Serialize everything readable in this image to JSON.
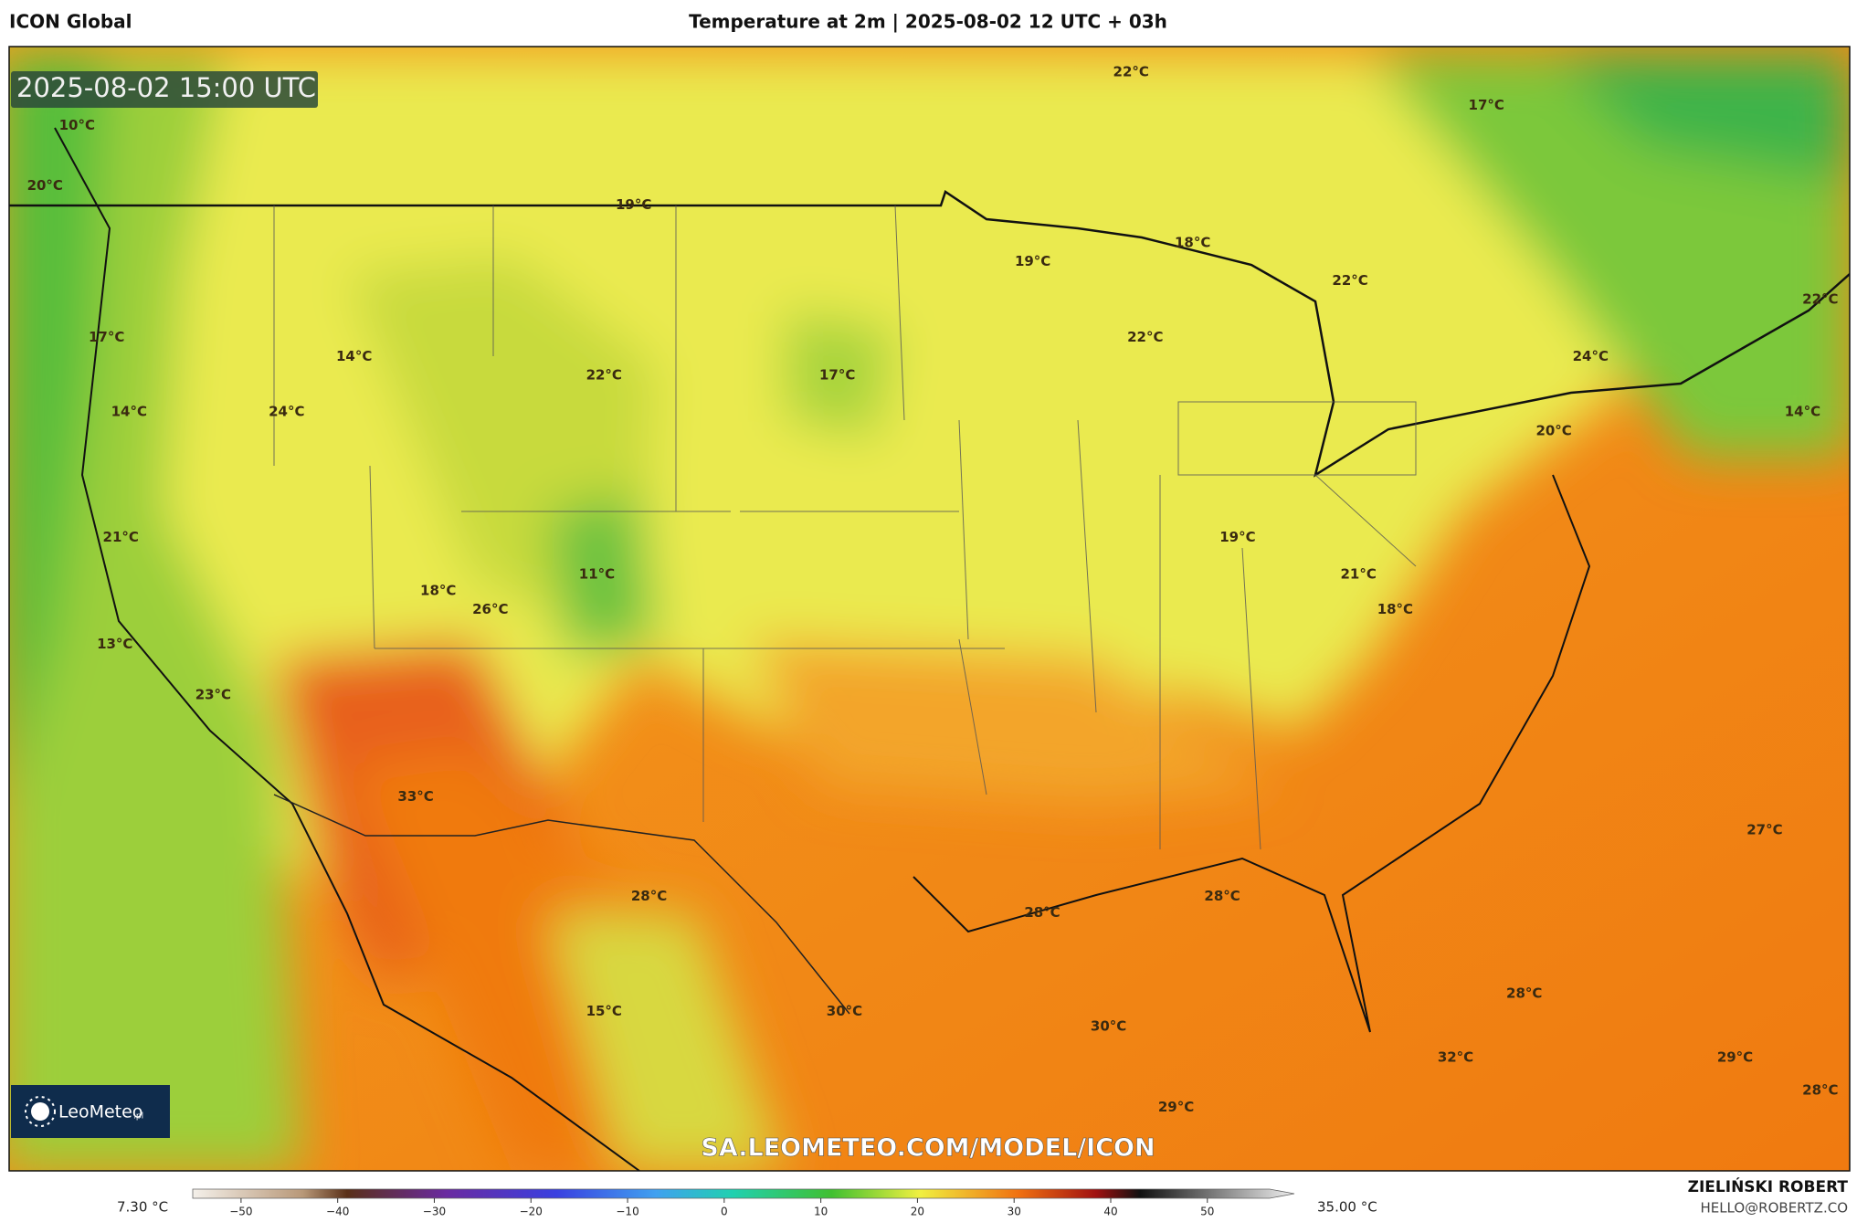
{
  "header": {
    "model": "ICON Global",
    "title": "Temperature at 2m | 2025-08-02 12 UTC + 03h"
  },
  "map": {
    "timestamp": "2025-08-02 15:00 UTC",
    "watermark": "SA.LEOMETEO.COM/MODEL/ICON",
    "logo": {
      "name": "LeoMeteo",
      "suffix": ".pl"
    },
    "temperature_labels": [
      "10°C",
      "20°C",
      "19°C",
      "22°C",
      "17°C",
      "19°C",
      "18°C",
      "22°C",
      "22°C",
      "17°C",
      "14°C",
      "22°C",
      "24°C",
      "22°C",
      "17°C",
      "14°C",
      "24°C",
      "14°C",
      "20°C",
      "21°C",
      "19°C",
      "11°C",
      "21°C",
      "18°C",
      "26°C",
      "18°C",
      "13°C",
      "23°C",
      "33°C",
      "27°C",
      "28°C",
      "28°C",
      "28°C",
      "28°C",
      "15°C",
      "30°C",
      "30°C",
      "32°C",
      "29°C",
      "28°C",
      "29°C"
    ]
  },
  "colorbar": {
    "min_label": "7.30 °C",
    "max_label": "35.00 °C",
    "lim": [
      -55,
      59
    ],
    "ticks": [
      {
        "value": -50,
        "label": "−50"
      },
      {
        "value": -40,
        "label": "−40"
      },
      {
        "value": -30,
        "label": "−30"
      },
      {
        "value": -20,
        "label": "−20"
      },
      {
        "value": -10,
        "label": "−10"
      },
      0,
      10,
      20,
      30,
      40,
      50
    ]
  },
  "footer": {
    "author": "ZIELIŃSKI ROBERT",
    "contact": "HELLO@ROBERTZ.CO"
  }
}
